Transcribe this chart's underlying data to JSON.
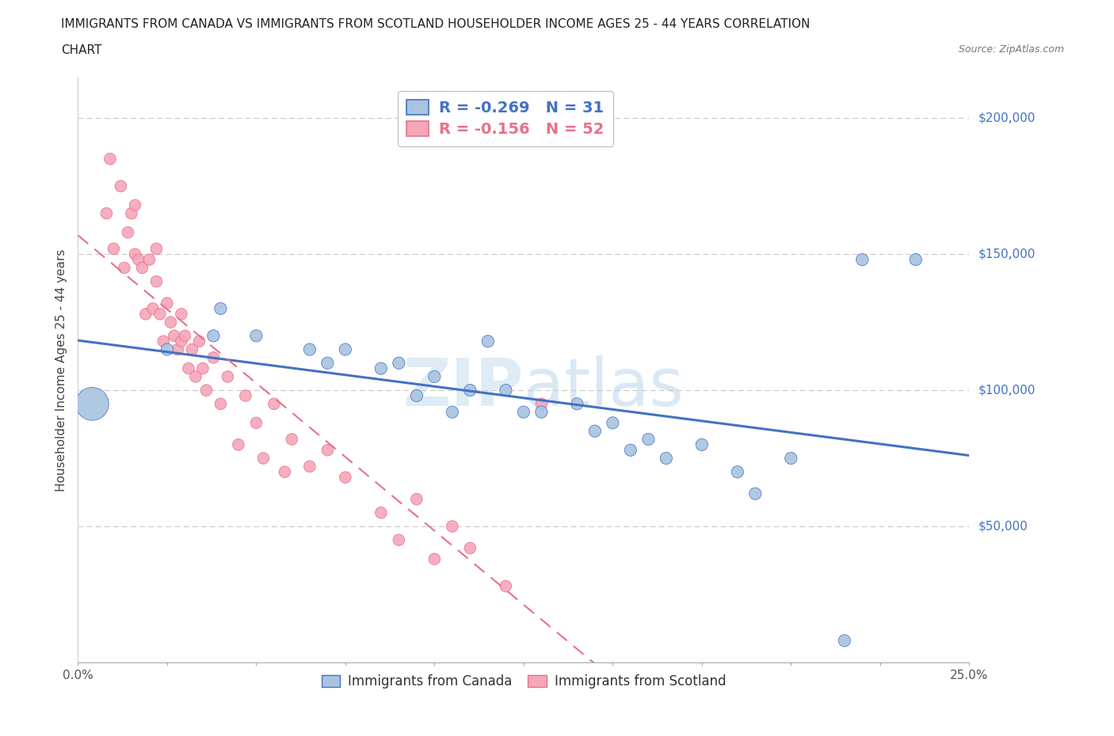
{
  "title_line1": "IMMIGRANTS FROM CANADA VS IMMIGRANTS FROM SCOTLAND HOUSEHOLDER INCOME AGES 25 - 44 YEARS CORRELATION",
  "title_line2": "CHART",
  "source_text": "Source: ZipAtlas.com",
  "ylabel": "Householder Income Ages 25 - 44 years",
  "xlim": [
    0.0,
    0.25
  ],
  "ylim": [
    0,
    215000
  ],
  "yticks": [
    0,
    50000,
    100000,
    150000,
    200000
  ],
  "ytick_labels": [
    "",
    "$50,000",
    "$100,000",
    "$150,000",
    "$200,000"
  ],
  "xticks": [
    0.0,
    0.025,
    0.05,
    0.075,
    0.1,
    0.125,
    0.15,
    0.175,
    0.2,
    0.225,
    0.25
  ],
  "canada_color": "#a8c4e0",
  "canada_line_color": "#4472c4",
  "scotland_color": "#f4a7b9",
  "scotland_line_color": "#e8708a",
  "R_canada": -0.269,
  "N_canada": 31,
  "R_scotland": -0.156,
  "N_scotland": 52,
  "watermark": "ZIPatlas",
  "grid_color": "#c8c8c8",
  "background_color": "#ffffff",
  "canada_x": [
    0.004,
    0.025,
    0.038,
    0.04,
    0.05,
    0.065,
    0.07,
    0.075,
    0.085,
    0.09,
    0.095,
    0.1,
    0.105,
    0.11,
    0.115,
    0.12,
    0.125,
    0.13,
    0.14,
    0.145,
    0.15,
    0.155,
    0.16,
    0.165,
    0.175,
    0.185,
    0.19,
    0.2,
    0.215,
    0.22,
    0.235
  ],
  "canada_y": [
    95000,
    115000,
    120000,
    130000,
    120000,
    115000,
    110000,
    115000,
    108000,
    110000,
    98000,
    105000,
    92000,
    100000,
    118000,
    100000,
    92000,
    92000,
    95000,
    85000,
    88000,
    78000,
    82000,
    75000,
    80000,
    70000,
    62000,
    75000,
    8000,
    148000,
    148000
  ],
  "scotland_x": [
    0.008,
    0.009,
    0.01,
    0.012,
    0.013,
    0.014,
    0.015,
    0.016,
    0.016,
    0.017,
    0.018,
    0.019,
    0.02,
    0.021,
    0.022,
    0.022,
    0.023,
    0.024,
    0.025,
    0.026,
    0.027,
    0.028,
    0.029,
    0.029,
    0.03,
    0.031,
    0.032,
    0.033,
    0.034,
    0.035,
    0.036,
    0.038,
    0.04,
    0.042,
    0.045,
    0.047,
    0.05,
    0.052,
    0.055,
    0.058,
    0.06,
    0.065,
    0.07,
    0.075,
    0.085,
    0.09,
    0.095,
    0.1,
    0.105,
    0.11,
    0.12,
    0.13
  ],
  "scotland_y": [
    165000,
    185000,
    152000,
    175000,
    145000,
    158000,
    165000,
    150000,
    168000,
    148000,
    145000,
    128000,
    148000,
    130000,
    140000,
    152000,
    128000,
    118000,
    132000,
    125000,
    120000,
    115000,
    128000,
    118000,
    120000,
    108000,
    115000,
    105000,
    118000,
    108000,
    100000,
    112000,
    95000,
    105000,
    80000,
    98000,
    88000,
    75000,
    95000,
    70000,
    82000,
    72000,
    78000,
    68000,
    55000,
    45000,
    60000,
    38000,
    50000,
    42000,
    28000,
    95000
  ],
  "canada_bubble_x": [
    0.004
  ],
  "canada_bubble_size": 900,
  "canada_regular_size": 120,
  "scotland_regular_size": 110
}
